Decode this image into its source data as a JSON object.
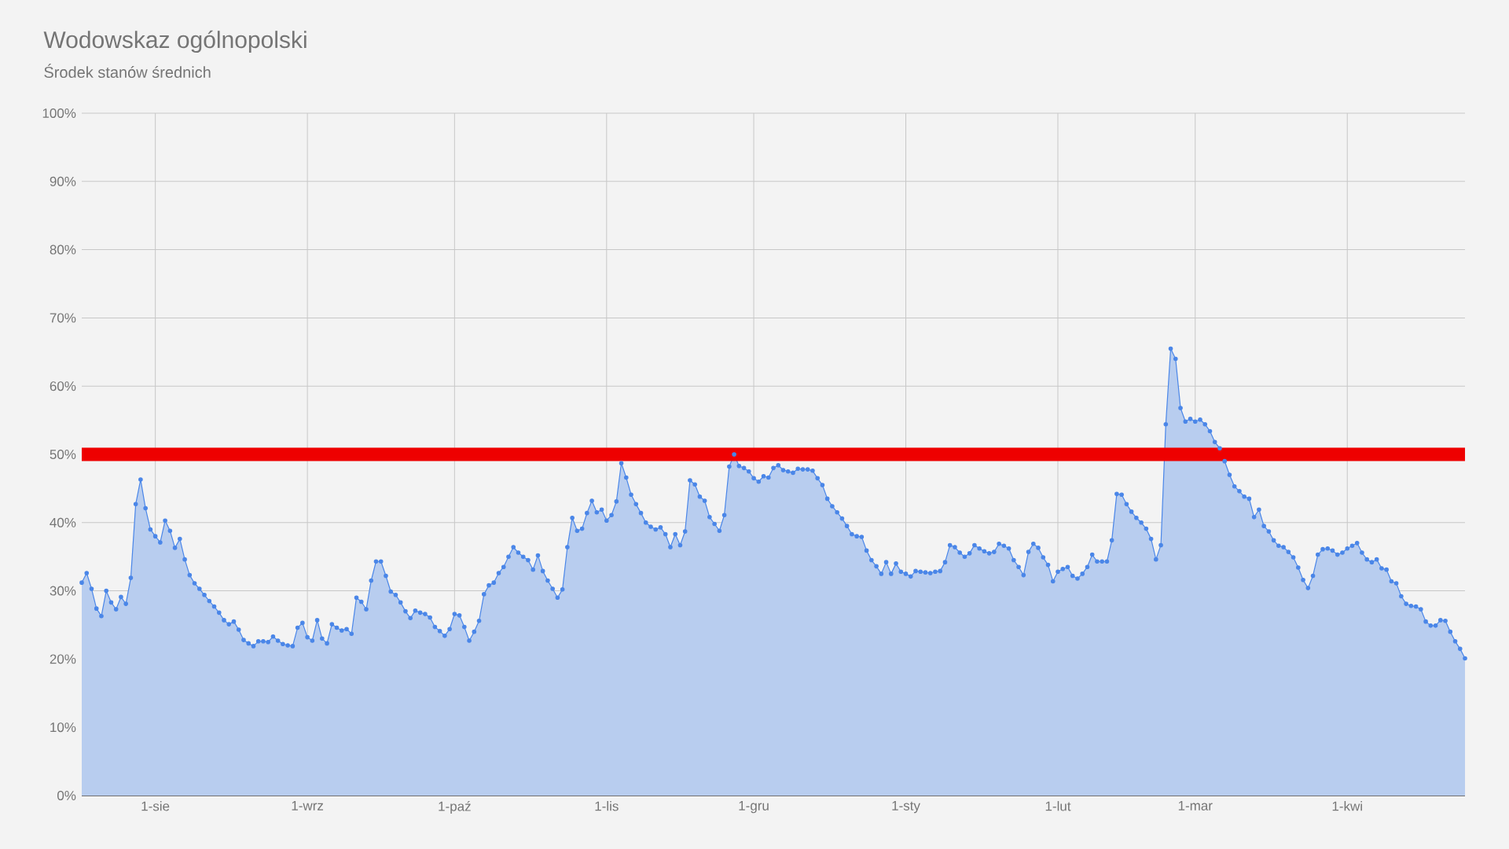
{
  "chart_data": {
    "type": "area",
    "title": "Wodowskaz ogólnopolski",
    "subtitle": "Środek stanów średnich",
    "categories": [
      null,
      null,
      null,
      null,
      null,
      null,
      null,
      null,
      null,
      null,
      null,
      null,
      null,
      null,
      null,
      "1-sie",
      null,
      null,
      null,
      null,
      null,
      null,
      null,
      null,
      null,
      null,
      null,
      null,
      null,
      null,
      null,
      null,
      null,
      null,
      null,
      null,
      null,
      null,
      null,
      null,
      null,
      null,
      null,
      null,
      null,
      null,
      "1-wrz",
      null,
      null,
      null,
      null,
      null,
      null,
      null,
      null,
      null,
      null,
      null,
      null,
      null,
      null,
      null,
      null,
      null,
      null,
      null,
      null,
      null,
      null,
      null,
      null,
      null,
      null,
      null,
      null,
      null,
      "1-paź",
      null,
      null,
      null,
      null,
      null,
      null,
      null,
      null,
      null,
      null,
      null,
      null,
      null,
      null,
      null,
      null,
      null,
      null,
      null,
      null,
      null,
      null,
      null,
      null,
      null,
      null,
      null,
      null,
      null,
      null,
      "1-lis",
      null,
      null,
      null,
      null,
      null,
      null,
      null,
      null,
      null,
      null,
      null,
      null,
      null,
      null,
      null,
      null,
      null,
      null,
      null,
      null,
      null,
      null,
      null,
      null,
      null,
      null,
      null,
      null,
      null,
      "1-gru",
      null,
      null,
      null,
      null,
      null,
      null,
      null,
      null,
      null,
      null,
      null,
      null,
      null,
      null,
      null,
      null,
      null,
      null,
      null,
      null,
      null,
      null,
      null,
      null,
      null,
      null,
      null,
      null,
      null,
      null,
      "1-sty",
      null,
      null,
      null,
      null,
      null,
      null,
      null,
      null,
      null,
      null,
      null,
      null,
      null,
      null,
      null,
      null,
      null,
      null,
      null,
      null,
      null,
      null,
      null,
      null,
      null,
      null,
      null,
      null,
      null,
      null,
      "1-lut",
      null,
      null,
      null,
      null,
      null,
      null,
      null,
      null,
      null,
      null,
      null,
      null,
      null,
      null,
      null,
      null,
      null,
      null,
      null,
      null,
      null,
      null,
      null,
      null,
      null,
      null,
      null,
      "1-mar",
      null,
      null,
      null,
      null,
      null,
      null,
      null,
      null,
      null,
      null,
      null,
      null,
      null,
      null,
      null,
      null,
      null,
      null,
      null,
      null,
      null,
      null,
      null,
      null,
      null,
      null,
      null,
      null,
      null,
      null,
      "1-kwi",
      null,
      null,
      null,
      null,
      null,
      null,
      null,
      null,
      null,
      null,
      null,
      null,
      null,
      null,
      null,
      null,
      null,
      null,
      null,
      null,
      null,
      null,
      null,
      null
    ],
    "values": [
      31.2,
      32.6,
      30.3,
      27.4,
      26.3,
      30.0,
      28.3,
      27.3,
      29.1,
      28.1,
      31.9,
      42.7,
      46.3,
      42.1,
      39.0,
      38.0,
      37.1,
      40.3,
      38.8,
      36.3,
      37.6,
      34.6,
      32.3,
      31.1,
      30.3,
      29.4,
      28.5,
      27.7,
      26.8,
      25.7,
      25.1,
      25.5,
      24.3,
      22.8,
      22.3,
      21.9,
      22.6,
      22.6,
      22.5,
      23.3,
      22.7,
      22.2,
      22.0,
      21.9,
      24.6,
      25.3,
      23.2,
      22.7,
      25.7,
      23.0,
      22.3,
      25.1,
      24.6,
      24.2,
      24.4,
      23.7,
      29.0,
      28.4,
      27.3,
      31.5,
      34.3,
      34.3,
      32.2,
      29.9,
      29.4,
      28.3,
      27.0,
      26.0,
      27.1,
      26.8,
      26.6,
      26.1,
      24.7,
      24.1,
      23.4,
      24.4,
      26.6,
      26.4,
      24.7,
      22.7,
      24.0,
      25.6,
      29.5,
      30.8,
      31.2,
      32.6,
      33.5,
      35.0,
      36.4,
      35.6,
      35.0,
      34.5,
      33.1,
      35.2,
      32.9,
      31.5,
      30.3,
      29.0,
      30.2,
      36.4,
      40.7,
      38.8,
      39.1,
      41.4,
      43.2,
      41.5,
      41.9,
      40.3,
      41.1,
      43.1,
      48.7,
      46.6,
      44.1,
      42.7,
      41.4,
      40.0,
      39.4,
      39.0,
      39.3,
      38.3,
      36.4,
      38.3,
      36.7,
      38.7,
      46.2,
      45.6,
      43.8,
      43.2,
      40.8,
      39.8,
      38.8,
      41.1,
      48.2,
      50.0,
      48.3,
      48.0,
      47.5,
      46.5,
      46.0,
      46.8,
      46.6,
      48.0,
      48.4,
      47.7,
      47.5,
      47.3,
      47.9,
      47.8,
      47.8,
      47.6,
      46.5,
      45.5,
      43.5,
      42.4,
      41.5,
      40.6,
      39.5,
      38.3,
      38.0,
      37.9,
      35.9,
      34.5,
      33.6,
      32.5,
      34.2,
      32.5,
      34.0,
      32.8,
      32.5,
      32.1,
      32.9,
      32.8,
      32.7,
      32.6,
      32.8,
      32.9,
      34.2,
      36.7,
      36.4,
      35.6,
      35.0,
      35.5,
      36.7,
      36.2,
      35.8,
      35.5,
      35.7,
      36.9,
      36.6,
      36.2,
      34.5,
      33.5,
      32.3,
      35.7,
      36.9,
      36.3,
      34.9,
      33.8,
      31.4,
      32.8,
      33.2,
      33.5,
      32.2,
      31.8,
      32.5,
      33.5,
      35.3,
      34.3,
      34.3,
      34.3,
      37.4,
      44.2,
      44.1,
      42.7,
      41.6,
      40.7,
      40.0,
      39.1,
      37.6,
      34.6,
      36.7,
      54.4,
      65.5,
      64.0,
      56.8,
      54.8,
      55.2,
      54.8,
      55.1,
      54.4,
      53.4,
      51.8,
      50.9,
      49.0,
      47.0,
      45.3,
      44.6,
      43.8,
      43.5,
      40.8,
      41.9,
      39.5,
      38.7,
      37.4,
      36.6,
      36.4,
      35.7,
      34.9,
      33.4,
      31.6,
      30.4,
      32.2,
      35.3,
      36.1,
      36.2,
      35.9,
      35.3,
      35.6,
      36.2,
      36.6,
      37.0,
      35.6,
      34.6,
      34.2,
      34.6,
      33.3,
      33.1,
      31.4,
      31.1,
      29.2,
      28.1,
      27.8,
      27.7,
      27.3,
      25.5,
      24.9,
      24.9,
      25.7,
      25.6,
      24.0,
      22.6,
      21.5,
      20.1
    ],
    "color": "#4a86e8",
    "marker": "circle",
    "grid": true,
    "ylim": [
      0,
      100
    ],
    "yticks": [
      {
        "value": 0,
        "label": "0%"
      },
      {
        "value": 10,
        "label": "10%"
      },
      {
        "value": 20,
        "label": "20%"
      },
      {
        "value": 30,
        "label": "30%"
      },
      {
        "value": 40,
        "label": "40%"
      },
      {
        "value": 50,
        "label": "50%"
      },
      {
        "value": 60,
        "label": "60%"
      },
      {
        "value": 70,
        "label": "70%"
      },
      {
        "value": 80,
        "label": "80%"
      },
      {
        "value": 90,
        "label": "90%"
      },
      {
        "value": 100,
        "label": "100%"
      }
    ],
    "ref_lines": [
      {
        "axis": "y",
        "value": 50,
        "color": "#ee0000"
      }
    ]
  }
}
